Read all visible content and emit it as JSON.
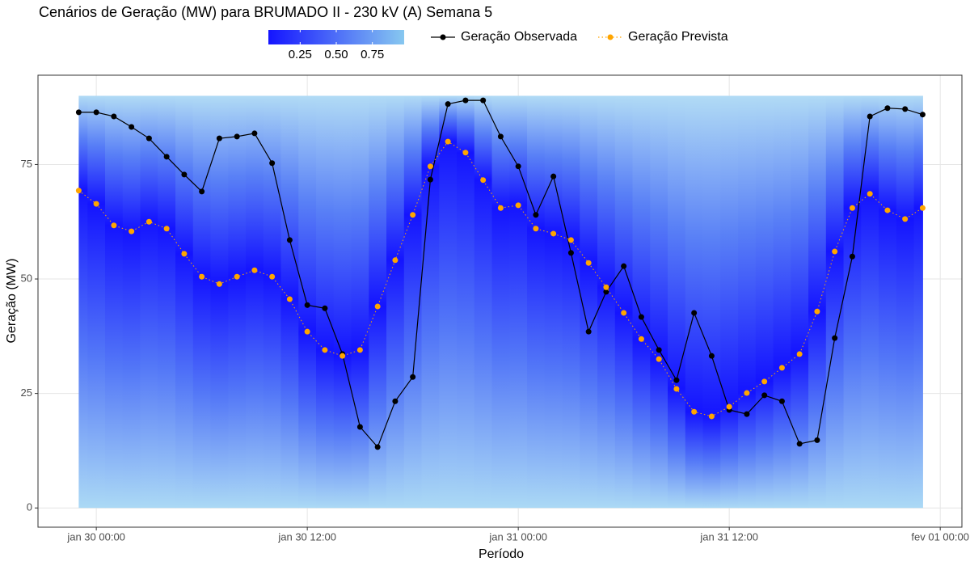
{
  "chart_data": {
    "type": "line",
    "title": "Cenários de Geração (MW) para BRUMADO II - 230 kV (A) Semana 5",
    "x_label": "Período",
    "y_label": "Geração (MW)",
    "x": [
      "jan 29 23:00",
      "jan 30 00:00",
      "jan 30 01:00",
      "jan 30 02:00",
      "jan 30 03:00",
      "jan 30 04:00",
      "jan 30 05:00",
      "jan 30 06:00",
      "jan 30 07:00",
      "jan 30 08:00",
      "jan 30 09:00",
      "jan 30 10:00",
      "jan 30 11:00",
      "jan 30 12:00",
      "jan 30 13:00",
      "jan 30 14:00",
      "jan 30 15:00",
      "jan 30 16:00",
      "jan 30 17:00",
      "jan 30 18:00",
      "jan 30 19:00",
      "jan 30 20:00",
      "jan 30 21:00",
      "jan 30 22:00",
      "jan 30 23:00",
      "jan 31 00:00",
      "jan 31 01:00",
      "jan 31 02:00",
      "jan 31 03:00",
      "jan 31 04:00",
      "jan 31 05:00",
      "jan 31 06:00",
      "jan 31 07:00",
      "jan 31 08:00",
      "jan 31 09:00",
      "jan 31 10:00",
      "jan 31 11:00",
      "jan 31 12:00",
      "jan 31 13:00",
      "jan 31 14:00",
      "jan 31 15:00",
      "jan 31 16:00",
      "jan 31 17:00",
      "jan 31 18:00",
      "jan 31 19:00",
      "jan 31 20:00",
      "jan 31 21:00",
      "jan 31 22:00",
      "jan 31 23:00"
    ],
    "series": [
      {
        "name": "Geração Observada",
        "color": "#000000",
        "line_style": "solid",
        "values": [
          86.4,
          86.4,
          85.5,
          83.2,
          80.7,
          76.7,
          72.8,
          69.1,
          80.7,
          81.1,
          81.8,
          75.3,
          58.5,
          44.3,
          43.6,
          33.6,
          17.7,
          13.3,
          23.3,
          28.6,
          71.7,
          88.2,
          89.0,
          89.0,
          81.1,
          74.6,
          64.0,
          72.4,
          55.7,
          38.5,
          47.2,
          52.8,
          41.7,
          34.5,
          27.9,
          42.6,
          33.2,
          21.4,
          20.5,
          24.6,
          23.3,
          14.0,
          14.8,
          37.1,
          54.9,
          85.5,
          87.3,
          87.1,
          85.9
        ]
      },
      {
        "name": "Geração Prevista",
        "color": "#ffa500",
        "line_style": "dotted",
        "values": [
          69.3,
          66.4,
          61.7,
          60.4,
          62.5,
          61.0,
          55.5,
          50.5,
          48.9,
          50.5,
          51.9,
          50.5,
          45.6,
          38.5,
          34.5,
          33.2,
          34.5,
          44.0,
          54.1,
          64.0,
          74.6,
          80.0,
          77.6,
          71.6,
          65.5,
          66.1,
          61.0,
          59.9,
          58.5,
          53.5,
          48.2,
          42.6,
          36.9,
          32.5,
          26.0,
          21.0,
          20.0,
          22.1,
          25.1,
          27.6,
          30.6,
          33.6,
          42.9,
          56.0,
          65.5,
          68.6,
          65.0,
          63.1,
          65.5
        ]
      }
    ],
    "scenario_range": [
      0,
      90
    ],
    "colorbar": {
      "lim": [
        0.03,
        0.97
      ],
      "ticks": [
        0.25,
        {
          "value": 0.5,
          "label": "0.50"
        },
        0.75
      ],
      "colors": [
        "#1414ff",
        "#87c8f0"
      ]
    },
    "xlim": [
      "jan 29 20:41",
      "fev 01 01:14"
    ],
    "xticks": [
      "jan 30 00:00",
      "jan 30 12:00",
      "jan 31 00:00",
      "jan 31 12:00",
      "fev 01 00:00"
    ],
    "ylim": [
      -4.2,
      94.5
    ],
    "yticks": [
      0,
      25,
      50,
      75
    ],
    "grid": true
  }
}
